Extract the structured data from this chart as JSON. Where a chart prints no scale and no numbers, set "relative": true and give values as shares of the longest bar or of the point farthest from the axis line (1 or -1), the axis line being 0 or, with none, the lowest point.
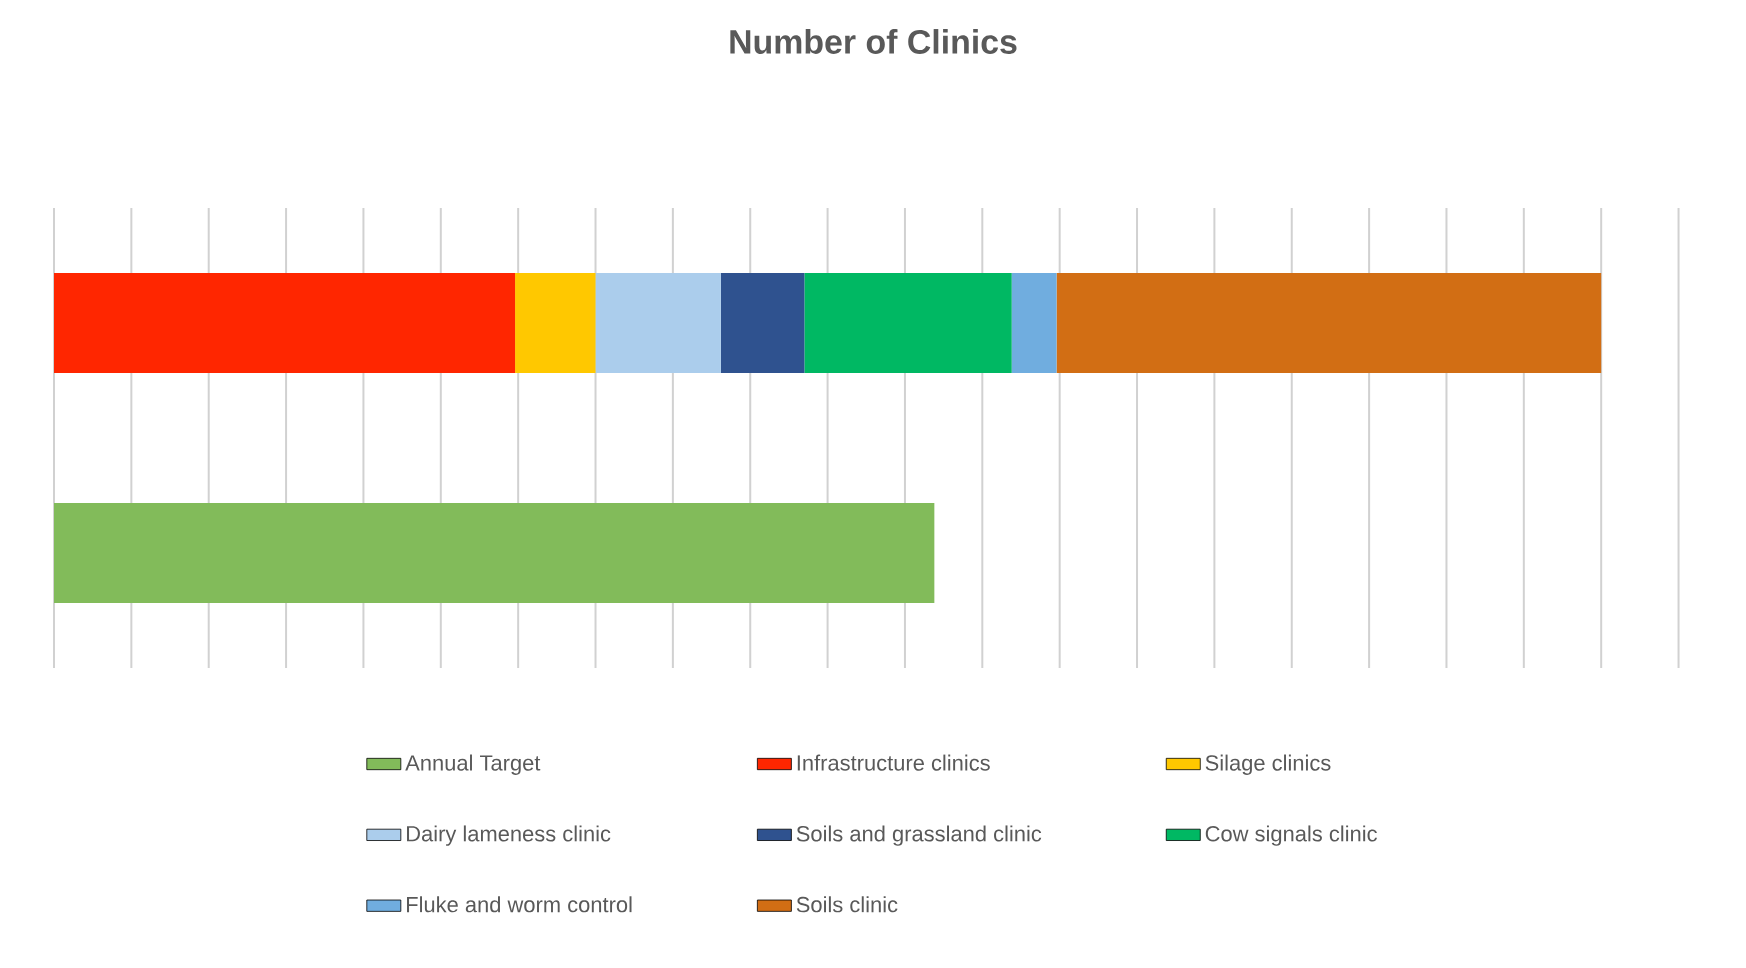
{
  "chart_data": {
    "type": "bar",
    "title": "Number of Clinics",
    "orientation": "horizontal",
    "stacked": true,
    "relative": true,
    "grid": "x",
    "legend": "bottom",
    "categories": [
      null,
      null
    ],
    "series": [
      {
        "name": "Annual Target",
        "color": "#82bb5a",
        "values": [
          null,
          0.569
        ]
      },
      {
        "name": "Infrastructure clinics",
        "color": "#ff2600",
        "values": [
          0.298,
          null
        ]
      },
      {
        "name": "Silage clinics",
        "color": "#ffc800",
        "values": [
          0.052,
          null
        ]
      },
      {
        "name": "Dairy lameness clinic",
        "color": "#abcdec",
        "values": [
          0.081,
          null
        ]
      },
      {
        "name": "Soils and grassland clinic",
        "color": "#2f528f",
        "values": [
          0.054,
          null
        ]
      },
      {
        "name": "Cow signals clinic",
        "color": "#00b863",
        "values": [
          0.134,
          null
        ]
      },
      {
        "name": "Fluke and worm control",
        "color": "#70addf",
        "values": [
          0.029,
          null
        ]
      },
      {
        "name": "Soils clinic",
        "color": "#d26e14",
        "values": [
          0.352,
          null
        ]
      }
    ]
  }
}
